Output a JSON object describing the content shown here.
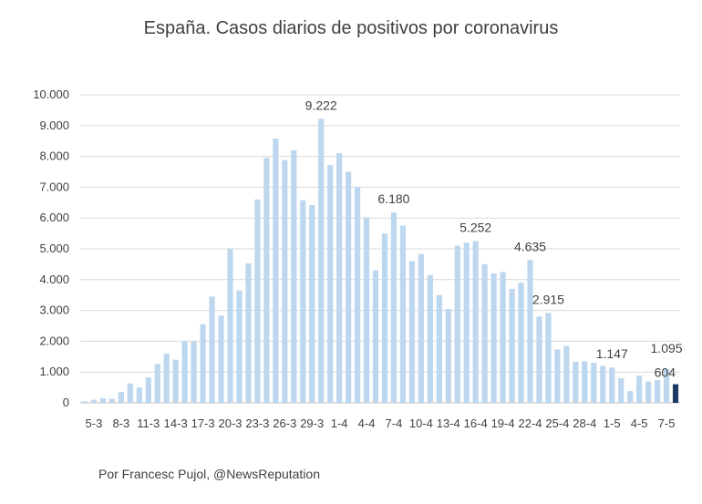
{
  "title": "España. Casos diarios de positivos por coronavirus",
  "source": "Por Francesc Pujol, @NewsReputation",
  "colors": {
    "bar": "#bdd7ee",
    "highlight": "#1f3864",
    "grid": "#d9d9d9",
    "text": "#404040"
  },
  "chart_data": {
    "type": "bar",
    "title": "España. Casos diarios de positivos por coronavirus",
    "xlabel": "",
    "ylabel": "",
    "ylim": [
      0,
      10000
    ],
    "yticks": [
      "0",
      "1.000",
      "2.000",
      "3.000",
      "4.000",
      "5.000",
      "6.000",
      "7.000",
      "8.000",
      "9.000",
      "10.000"
    ],
    "grid": true,
    "x_tick_labels": [
      "5-3",
      "8-3",
      "11-3",
      "14-3",
      "17-3",
      "20-3",
      "23-3",
      "26-3",
      "29-3",
      "1-4",
      "4-4",
      "7-4",
      "10-4",
      "13-4",
      "16-4",
      "19-4",
      "22-4",
      "25-4",
      "28-4",
      "1-5",
      "4-5",
      "7-5"
    ],
    "categories": [
      "5-3",
      "6-3",
      "7-3",
      "8-3",
      "9-3",
      "10-3",
      "11-3",
      "12-3",
      "13-3",
      "14-3",
      "15-3",
      "16-3",
      "17-3",
      "18-3",
      "19-3",
      "20-3",
      "21-3",
      "22-3",
      "23-3",
      "24-3",
      "25-3",
      "26-3",
      "27-3",
      "28-3",
      "29-3",
      "30-3",
      "31-3",
      "1-4",
      "2-4",
      "3-4",
      "4-4",
      "5-4",
      "6-4",
      "7-4",
      "8-4",
      "9-4",
      "10-4",
      "11-4",
      "12-4",
      "13-4",
      "14-4",
      "15-4",
      "16-4",
      "17-4",
      "18-4",
      "19-4",
      "20-4",
      "21-4",
      "22-4",
      "23-4",
      "24-4",
      "25-4",
      "26-4",
      "27-4",
      "28-4",
      "29-4",
      "30-4",
      "1-5",
      "2-5",
      "3-5",
      "4-5",
      "5-5",
      "6-5",
      "7-5",
      "8-5",
      "9-5"
    ],
    "values": [
      50,
      100,
      150,
      130,
      350,
      630,
      500,
      830,
      1260,
      1600,
      1400,
      2000,
      2000,
      2550,
      3450,
      2830,
      5000,
      3650,
      4530,
      6600,
      7950,
      8580,
      7880,
      8200,
      6580,
      6420,
      9222,
      7720,
      8100,
      7500,
      7010,
      6020,
      4300,
      5500,
      6180,
      5750,
      4600,
      4830,
      4150,
      3500,
      3050,
      5100,
      5200,
      5252,
      4500,
      4200,
      4250,
      3700,
      3900,
      4635,
      2800,
      2915,
      1730,
      1840,
      1330,
      1350,
      1300,
      1200,
      1147,
      800,
      380,
      880,
      690,
      740,
      1095,
      604
    ],
    "highlight_index": 65,
    "data_labels": [
      {
        "index": 26,
        "text": "9.222"
      },
      {
        "index": 34,
        "text": "6.180"
      },
      {
        "index": 43,
        "text": "5.252"
      },
      {
        "index": 49,
        "text": "4.635"
      },
      {
        "index": 51,
        "text": "2.915"
      },
      {
        "index": 58,
        "text": "1.147"
      },
      {
        "index": 64,
        "text": "1.095"
      },
      {
        "index": 65,
        "text": "604"
      }
    ]
  }
}
